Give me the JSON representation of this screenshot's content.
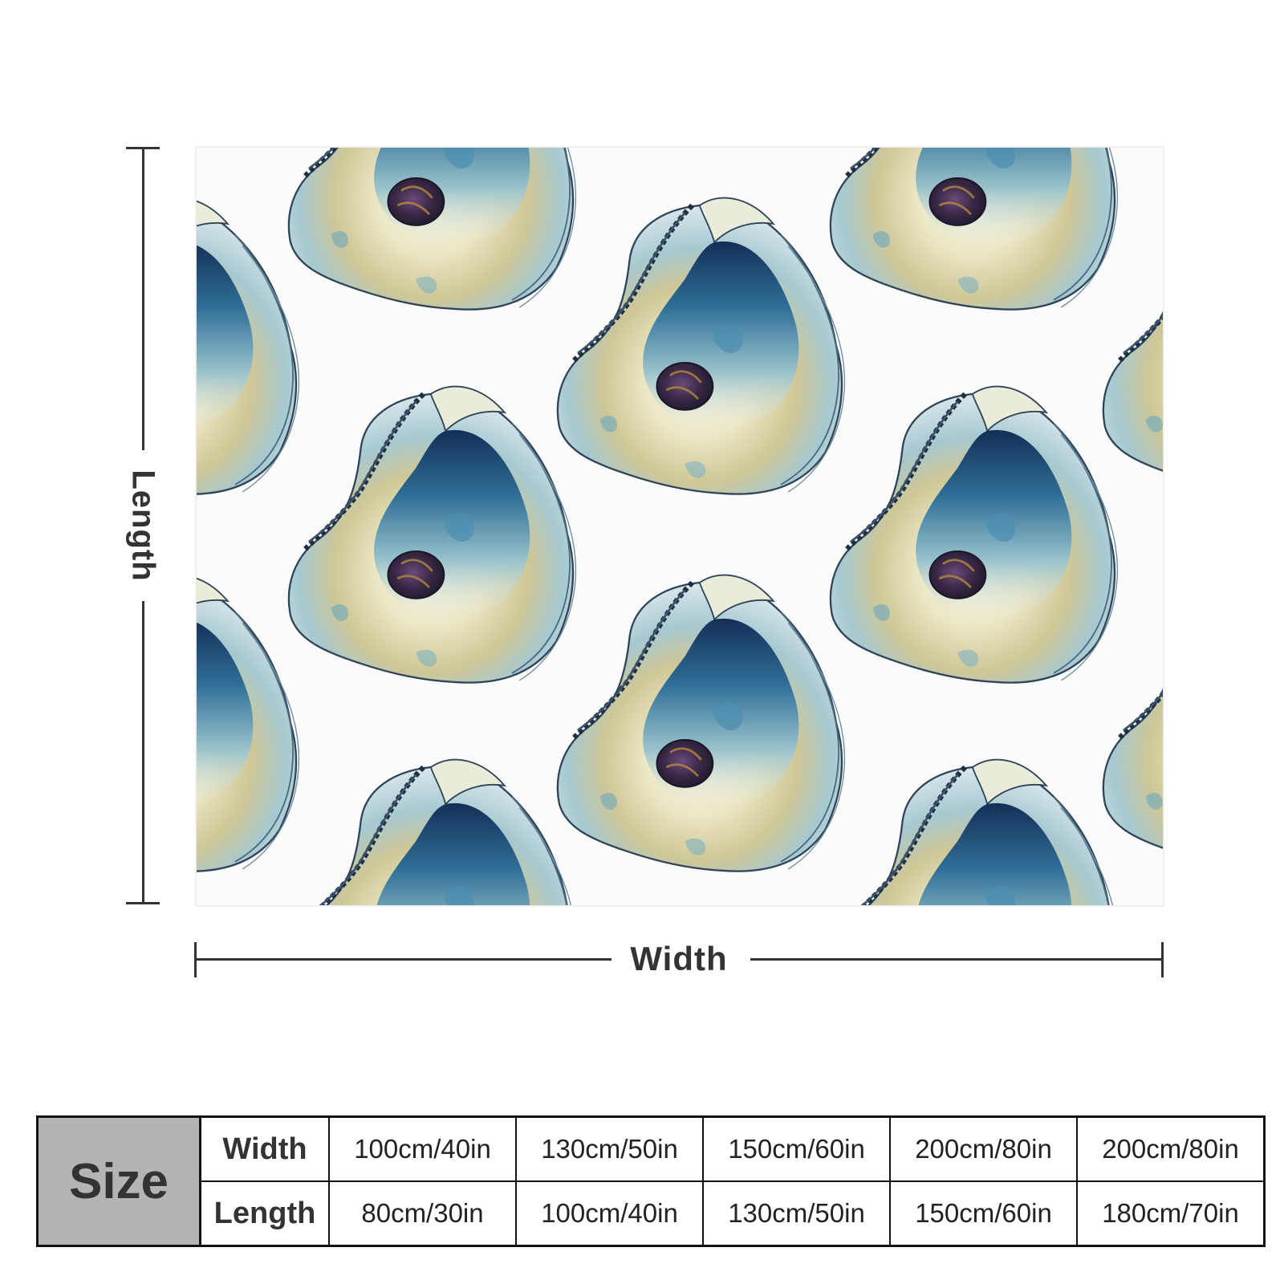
{
  "product": {
    "pattern": "oyster-shell-watercolor",
    "colors": {
      "deep_blue": "#1c4e7c",
      "teal": "#7fb3c2",
      "pale_blue": "#dce9ee",
      "sand": "#cdc594",
      "pearl": "#f3f2e6",
      "purple": "#3a2847",
      "outline": "#2f4458"
    }
  },
  "dimensions": {
    "length_label": "Length",
    "width_label": "Width"
  },
  "size_table": {
    "title": "Size",
    "width_label": "Width",
    "length_label": "Length",
    "widths": [
      "100cm/40in",
      "130cm/50in",
      "150cm/60in",
      "200cm/80in",
      "200cm/80in"
    ],
    "lengths": [
      "80cm/30in",
      "100cm/40in",
      "130cm/50in",
      "150cm/60in",
      "180cm/70in"
    ]
  }
}
